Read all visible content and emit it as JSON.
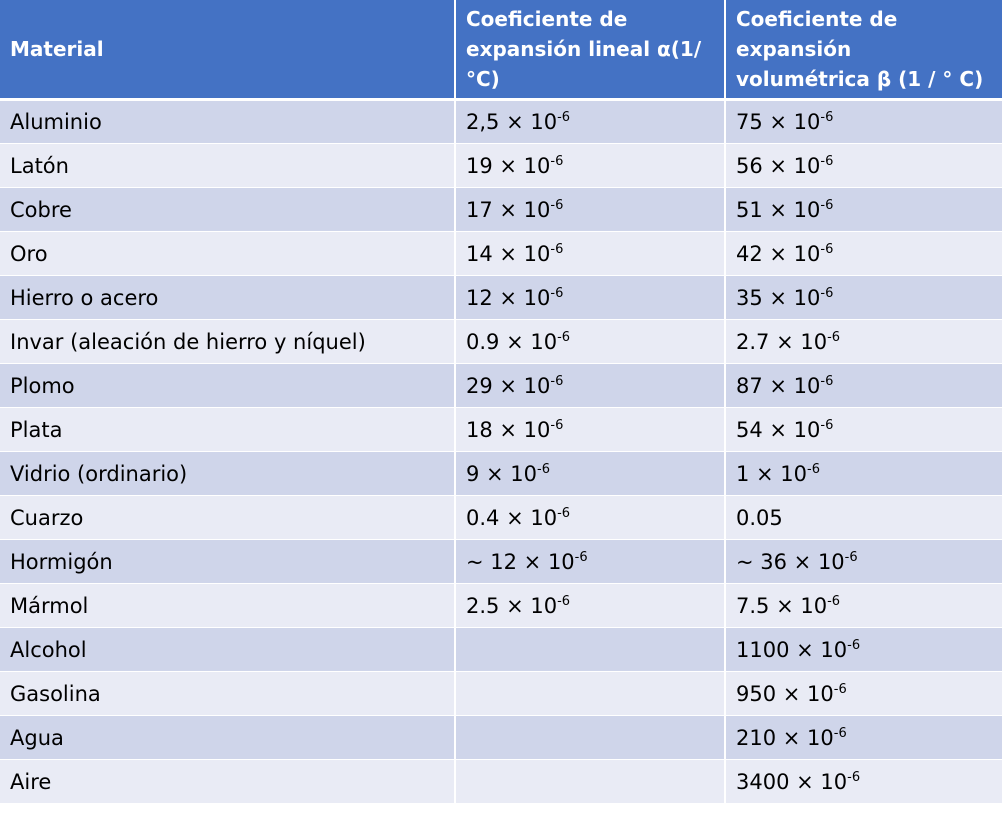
{
  "table": {
    "headers": [
      "Material",
      "Coeficiente de expansión lineal α(1/°C)",
      "Coeficiente de expansión volumétrica β (1 / ° C)"
    ],
    "rows": [
      {
        "material": "Aluminio",
        "linear": {
          "base": "2,5 × 10",
          "exp": "-6"
        },
        "volumetric": {
          "base": "75 × 10",
          "exp": "-6"
        }
      },
      {
        "material": "Latón",
        "linear": {
          "base": "19 × 10",
          "exp": "-6"
        },
        "volumetric": {
          "base": "56 × 10",
          "exp": "-6"
        }
      },
      {
        "material": "Cobre",
        "linear": {
          "base": "17 × 10",
          "exp": "-6"
        },
        "volumetric": {
          "base": "51 × 10",
          "exp": "-6"
        }
      },
      {
        "material": "Oro",
        "linear": {
          "base": "14 × 10",
          "exp": "-6"
        },
        "volumetric": {
          "base": "42 × 10",
          "exp": "-6"
        }
      },
      {
        "material": "Hierro o acero",
        "linear": {
          "base": "12 × 10",
          "exp": "-6"
        },
        "volumetric": {
          "base": "35 × 10",
          "exp": "-6"
        }
      },
      {
        "material": "Invar (aleación de hierro y níquel)",
        "linear": {
          "base": "0.9 × 10",
          "exp": "-6"
        },
        "volumetric": {
          "base": "2.7 × 10",
          "exp": "-6"
        }
      },
      {
        "material": "Plomo",
        "linear": {
          "base": "29 × 10",
          "exp": "-6"
        },
        "volumetric": {
          "base": "87 × 10",
          "exp": "-6"
        }
      },
      {
        "material": "Plata",
        "linear": {
          "base": "18 × 10",
          "exp": "-6"
        },
        "volumetric": {
          "base": "54 × 10",
          "exp": "-6"
        }
      },
      {
        "material": "Vidrio (ordinario)",
        "linear": {
          "base": "9 × 10",
          "exp": "-6"
        },
        "volumetric": {
          "base": "1 × 10",
          "exp": "-6"
        }
      },
      {
        "material": "Cuarzo",
        "linear": {
          "base": "0.4 × 10",
          "exp": "-6"
        },
        "volumetric": {
          "base": "0.05",
          "exp": ""
        }
      },
      {
        "material": "Hormigón",
        "linear": {
          "base": "~ 12 × 10",
          "exp": "-6"
        },
        "volumetric": {
          "base": "~ 36 × 10",
          "exp": "-6"
        }
      },
      {
        "material": "Mármol",
        "linear": {
          "base": "2.5 × 10",
          "exp": "-6"
        },
        "volumetric": {
          "base": "7.5 × 10",
          "exp": "-6"
        }
      },
      {
        "material": "Alcohol",
        "linear": {
          "base": "",
          "exp": ""
        },
        "volumetric": {
          "base": "1100 × 10",
          "exp": "-6"
        }
      },
      {
        "material": "Gasolina",
        "linear": {
          "base": "",
          "exp": ""
        },
        "volumetric": {
          "base": "950 × 10",
          "exp": "-6"
        }
      },
      {
        "material": "Agua",
        "linear": {
          "base": "",
          "exp": ""
        },
        "volumetric": {
          "base": "210 × 10",
          "exp": "-6"
        }
      },
      {
        "material": "Aire",
        "linear": {
          "base": "",
          "exp": ""
        },
        "volumetric": {
          "base": "3400 × 10",
          "exp": "-6"
        }
      }
    ]
  },
  "colors": {
    "header_bg": "#4472c4",
    "row_odd_bg": "#cfd5ea",
    "row_even_bg": "#e9ebf5"
  }
}
